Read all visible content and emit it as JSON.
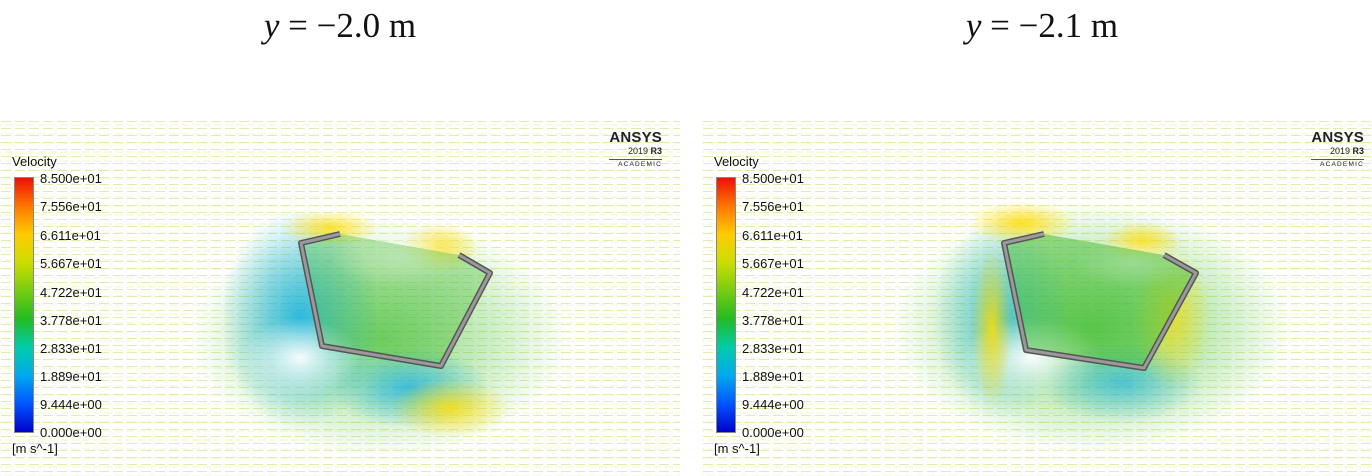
{
  "panels": [
    {
      "title_var": "y",
      "title_rest": " = −2.0 m",
      "logo": {
        "name": "ANSYS",
        "version": "2019",
        "release": "R3",
        "edition": "ACADEMIC"
      },
      "legend": {
        "title": "Velocity",
        "ticks": [
          "8.500e+01",
          "7.556e+01",
          "6.611e+01",
          "5.667e+01",
          "4.722e+01",
          "3.778e+01",
          "2.833e+01",
          "1.889e+01",
          "9.444e+00",
          "0.000e+00"
        ],
        "unit": "[m s^-1]"
      }
    },
    {
      "title_var": "y",
      "title_rest": " = −2.1 m",
      "logo": {
        "name": "ANSYS",
        "version": "2019",
        "release": "R3",
        "edition": "ACADEMIC"
      },
      "legend": {
        "title": "Velocity",
        "ticks": [
          "8.500e+01",
          "7.556e+01",
          "6.611e+01",
          "5.667e+01",
          "4.722e+01",
          "3.778e+01",
          "2.833e+01",
          "1.889e+01",
          "9.444e+00",
          "0.000e+00"
        ],
        "unit": "[m s^-1]"
      }
    }
  ],
  "colormap": [
    "#0000cc",
    "#0055ff",
    "#00aaee",
    "#00ccaa",
    "#22bb22",
    "#77cc11",
    "#ccdd00",
    "#ffcc00",
    "#ff7700",
    "#ee1100"
  ]
}
